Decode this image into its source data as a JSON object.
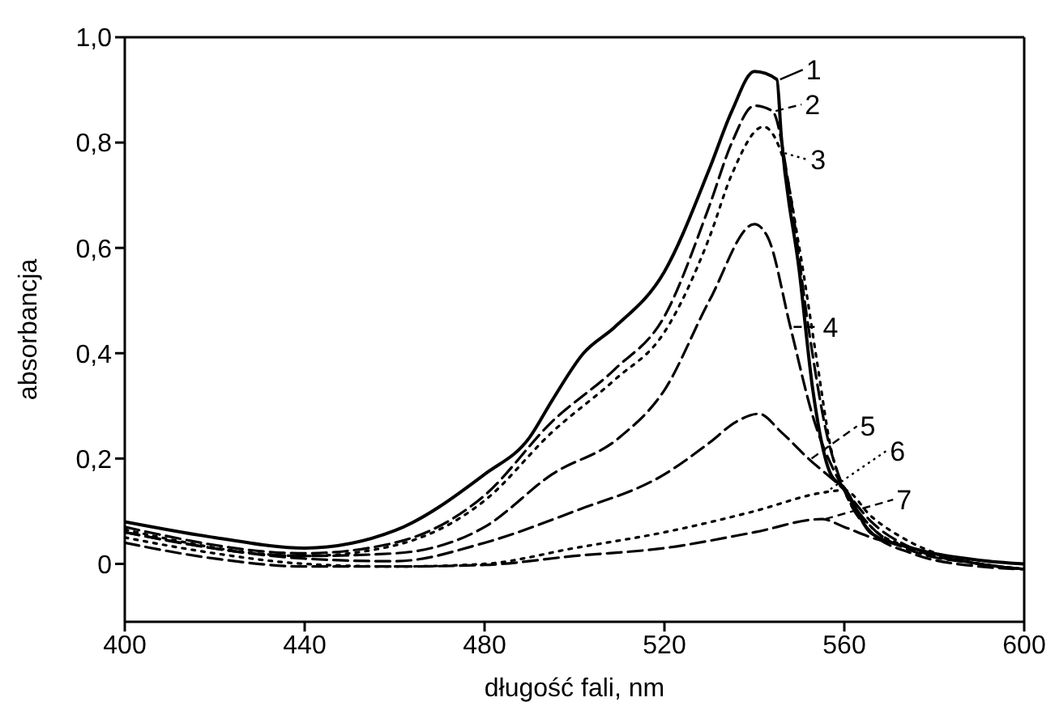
{
  "chart_data": {
    "type": "line",
    "xlabel": "długość fali, nm",
    "ylabel": "absorbancja",
    "xlim": [
      400,
      600
    ],
    "xticks": [
      400,
      440,
      480,
      520,
      560,
      600
    ],
    "ylim": [
      -0.11,
      1.0
    ],
    "legend": "right",
    "yticks": [
      0,
      {
        "value": 0.2,
        "label": "0,2"
      },
      {
        "value": 0.4,
        "label": "0,4"
      },
      {
        "value": 0.6,
        "label": "0,6"
      },
      {
        "value": 0.8,
        "label": "0,8"
      },
      {
        "value": 1.0,
        "label": "1,0"
      }
    ],
    "series": [
      {
        "name": "1",
        "color": "#000000",
        "line_style": "solid",
        "x": [
          400,
          420,
          440,
          460,
          480,
          490,
          495,
          502,
          509,
          520,
          530,
          535,
          540,
          545,
          546,
          550,
          553,
          557,
          560,
          566,
          575,
          590,
          600
        ],
        "values": [
          0.08,
          0.05,
          0.03,
          0.063,
          0.17,
          0.24,
          0.31,
          0.4,
          0.45,
          0.555,
          0.75,
          0.86,
          0.935,
          0.92,
          0.81,
          0.555,
          0.33,
          0.17,
          0.144,
          0.058,
          0.03,
          0.007,
          0.0
        ]
      },
      {
        "name": "2",
        "color": "#000000",
        "line_style": "dashed",
        "x": [
          400,
          440,
          460,
          480,
          495,
          509,
          520,
          530,
          535,
          540,
          544,
          548,
          552,
          556,
          560,
          566,
          575,
          590,
          600
        ],
        "values": [
          0.07,
          0.02,
          0.04,
          0.13,
          0.27,
          0.37,
          0.47,
          0.68,
          0.8,
          0.87,
          0.86,
          0.7,
          0.45,
          0.25,
          0.14,
          0.06,
          0.02,
          -0.005,
          -0.01
        ]
      },
      {
        "name": "3",
        "color": "#000000",
        "line_style": "dotted",
        "x": [
          400,
          440,
          460,
          480,
          495,
          509,
          520,
          530,
          535,
          542,
          546,
          550,
          554,
          557,
          560,
          566,
          575,
          590,
          600
        ],
        "values": [
          0.065,
          0.015,
          0.035,
          0.12,
          0.25,
          0.35,
          0.44,
          0.62,
          0.74,
          0.83,
          0.78,
          0.6,
          0.38,
          0.22,
          0.14,
          0.07,
          0.03,
          0.0,
          -0.01
        ]
      },
      {
        "name": "4",
        "color": "#000000",
        "line_style": "dashed",
        "x": [
          400,
          440,
          460,
          480,
          495,
          510,
          520,
          530,
          540,
          543,
          548,
          553,
          560,
          566,
          575,
          590,
          600
        ],
        "values": [
          0.06,
          0.015,
          0.02,
          0.07,
          0.17,
          0.24,
          0.33,
          0.5,
          0.645,
          0.62,
          0.45,
          0.28,
          0.14,
          0.07,
          0.025,
          0.0,
          -0.01
        ]
      },
      {
        "name": "5",
        "color": "#000000",
        "line_style": "dashed",
        "x": [
          400,
          440,
          460,
          480,
          500,
          520,
          530,
          536,
          541,
          546,
          552,
          560,
          566,
          575,
          590,
          600
        ],
        "values": [
          0.06,
          0.01,
          0.005,
          0.04,
          0.1,
          0.17,
          0.23,
          0.27,
          0.285,
          0.25,
          0.2,
          0.14,
          0.08,
          0.03,
          0.0,
          -0.01
        ]
      },
      {
        "name": "6",
        "color": "#000000",
        "line_style": "dotted",
        "x": [
          400,
          420,
          440,
          460,
          480,
          500,
          520,
          540,
          555,
          560,
          566,
          575,
          590,
          600
        ],
        "values": [
          0.05,
          0.02,
          0.0,
          -0.005,
          0.0,
          0.03,
          0.06,
          0.1,
          0.135,
          0.14,
          0.09,
          0.04,
          0.0,
          -0.01
        ]
      },
      {
        "name": "7",
        "color": "#000000",
        "line_style": "dashed",
        "x": [
          400,
          420,
          440,
          460,
          480,
          500,
          520,
          540,
          555,
          560,
          566,
          575,
          590,
          600
        ],
        "values": [
          0.04,
          0.01,
          -0.005,
          -0.005,
          -0.002,
          0.015,
          0.03,
          0.06,
          0.085,
          0.07,
          0.05,
          0.03,
          0.0,
          -0.01
        ]
      }
    ]
  }
}
